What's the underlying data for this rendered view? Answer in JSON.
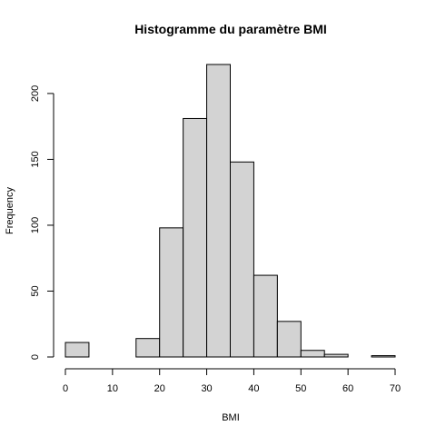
{
  "chart_data": {
    "type": "bar",
    "title": "Histogramme du paramètre BMI",
    "xlabel": "BMI",
    "ylabel": "Frequency",
    "bin_edges": [
      0,
      5,
      10,
      15,
      20,
      25,
      30,
      35,
      40,
      45,
      50,
      55,
      60,
      65,
      70
    ],
    "values": [
      11,
      0,
      0,
      14,
      98,
      181,
      222,
      148,
      62,
      27,
      5,
      2,
      0,
      1
    ],
    "xlim": [
      0,
      70
    ],
    "ylim": [
      0,
      222
    ],
    "x_ticks": [
      0,
      10,
      20,
      30,
      40,
      50,
      60,
      70
    ],
    "y_ticks": [
      0,
      50,
      100,
      150,
      200
    ],
    "bar_color": "#d3d3d3",
    "grid": false,
    "legend": "none"
  }
}
